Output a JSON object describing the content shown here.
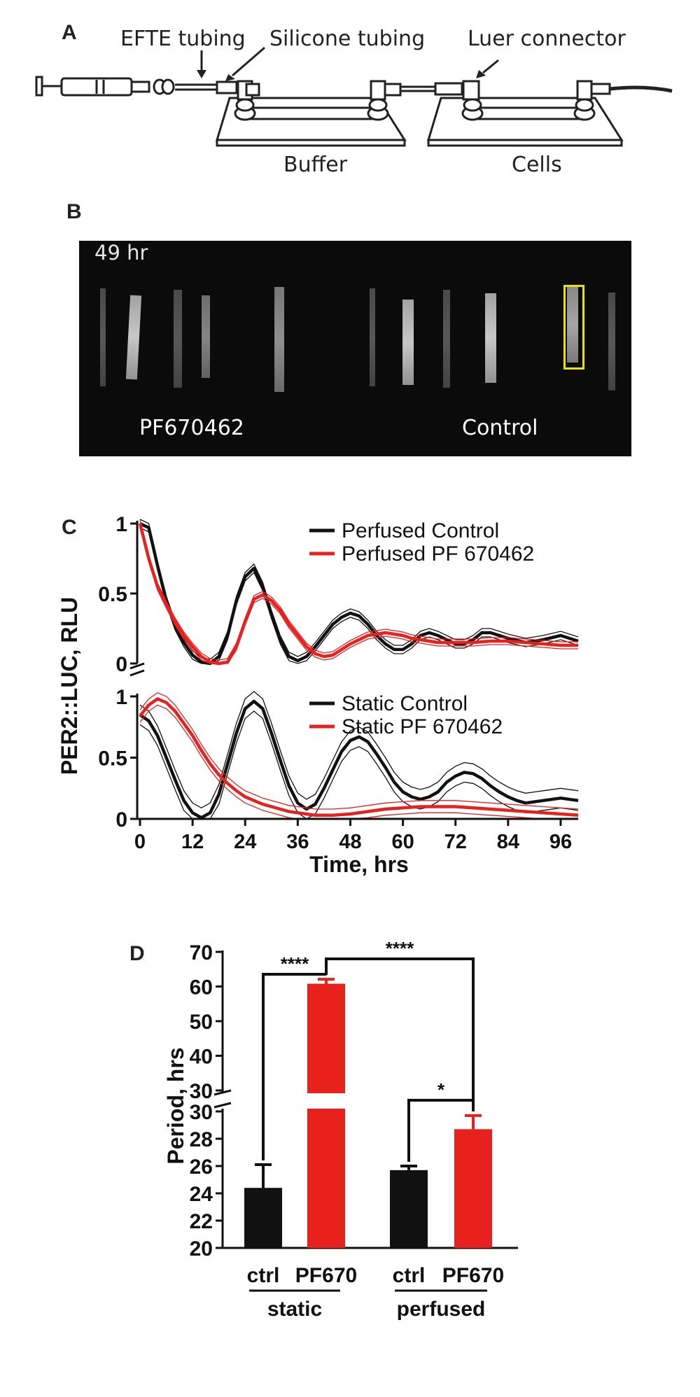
{
  "panel_a": {
    "letter": "A",
    "labels": {
      "efte_tubing": "EFTE tubing",
      "silicone_tubing": "Silicone tubing",
      "luer_connector": "Luer connector",
      "buffer": "Buffer",
      "cells": "Cells"
    }
  },
  "panel_b": {
    "letter": "B",
    "timestamp": "49 hr",
    "left_condition": "PF670462",
    "right_condition": "Control",
    "roi_color": "#e8e400"
  },
  "panel_c": {
    "letter": "C",
    "ylabel": "PER2::LUC, RLU",
    "xlabel": "Time, hrs",
    "colors": {
      "control": "#111111",
      "pf": "#e8211f"
    }
  },
  "panel_d": {
    "letter": "D",
    "ylabel": "Period, hrs",
    "significance": {
      "static_pair": "****",
      "between_groups": "****",
      "perfused_pair": "*"
    },
    "group_labels": {
      "static": "static",
      "perfused": "perfused"
    },
    "colors": {
      "ctrl": "#111111",
      "pf": "#e8211f"
    }
  },
  "chart_data": [
    {
      "type": "line",
      "panel": "C-top",
      "x_range": [
        0,
        100
      ],
      "x_ticks": [
        0,
        12,
        24,
        36,
        48,
        60,
        72,
        84,
        96
      ],
      "ylim": [
        0,
        1
      ],
      "y_ticks": [
        0,
        0.5,
        1
      ],
      "y_tick_labels": [
        "0",
        "0.5",
        "1"
      ],
      "legend_position": "top-right",
      "series": [
        {
          "name": "Perfused Control",
          "color": "#111111",
          "x": [
            0,
            2,
            4,
            6,
            8,
            10,
            12,
            14,
            16,
            18,
            20,
            22,
            24,
            26,
            28,
            30,
            32,
            34,
            36,
            38,
            40,
            42,
            44,
            46,
            48,
            50,
            52,
            54,
            56,
            58,
            60,
            62,
            64,
            66,
            68,
            70,
            72,
            74,
            76,
            78,
            80,
            84,
            88,
            92,
            96,
            100
          ],
          "y": [
            1.0,
            0.97,
            0.7,
            0.45,
            0.27,
            0.15,
            0.06,
            0.01,
            0.0,
            0.05,
            0.2,
            0.45,
            0.62,
            0.68,
            0.55,
            0.35,
            0.17,
            0.05,
            0.02,
            0.05,
            0.12,
            0.2,
            0.28,
            0.33,
            0.36,
            0.34,
            0.28,
            0.2,
            0.14,
            0.1,
            0.1,
            0.14,
            0.2,
            0.22,
            0.2,
            0.17,
            0.14,
            0.14,
            0.17,
            0.22,
            0.22,
            0.18,
            0.15,
            0.17,
            0.2,
            0.16
          ],
          "band": 0.03
        },
        {
          "name": "Perfused PF 670462",
          "color": "#e8211f",
          "x": [
            0,
            2,
            4,
            6,
            8,
            10,
            12,
            14,
            16,
            18,
            20,
            22,
            24,
            26,
            28,
            30,
            32,
            34,
            36,
            38,
            40,
            42,
            44,
            46,
            48,
            50,
            52,
            54,
            56,
            58,
            60,
            62,
            64,
            66,
            68,
            70,
            72,
            76,
            80,
            84,
            88,
            92,
            96,
            100
          ],
          "y": [
            1.0,
            0.75,
            0.55,
            0.42,
            0.3,
            0.2,
            0.12,
            0.05,
            0.01,
            0.0,
            0.01,
            0.12,
            0.3,
            0.46,
            0.49,
            0.45,
            0.38,
            0.28,
            0.2,
            0.12,
            0.07,
            0.05,
            0.06,
            0.1,
            0.14,
            0.17,
            0.2,
            0.21,
            0.22,
            0.21,
            0.2,
            0.18,
            0.17,
            0.16,
            0.15,
            0.15,
            0.15,
            0.15,
            0.16,
            0.16,
            0.15,
            0.14,
            0.13,
            0.13
          ],
          "band": 0.025
        }
      ]
    },
    {
      "type": "line",
      "panel": "C-bottom",
      "x_range": [
        0,
        100
      ],
      "x_ticks": [
        0,
        12,
        24,
        36,
        48,
        60,
        72,
        84,
        96
      ],
      "x_tick_labels": [
        "0",
        "12",
        "24",
        "36",
        "48",
        "60",
        "72",
        "84",
        "96"
      ],
      "ylim": [
        0,
        1
      ],
      "y_ticks": [
        0,
        0.5,
        1
      ],
      "y_tick_labels": [
        "0",
        "0.5",
        "1"
      ],
      "legend_position": "top-right",
      "series": [
        {
          "name": "Static Control",
          "color": "#111111",
          "x": [
            0,
            2,
            4,
            6,
            8,
            10,
            12,
            14,
            16,
            18,
            20,
            22,
            24,
            26,
            28,
            30,
            32,
            34,
            36,
            38,
            40,
            42,
            44,
            46,
            48,
            50,
            52,
            54,
            56,
            58,
            60,
            62,
            64,
            66,
            68,
            70,
            72,
            74,
            76,
            78,
            80,
            82,
            84,
            86,
            88,
            92,
            96,
            100
          ],
          "y": [
            0.85,
            0.8,
            0.68,
            0.5,
            0.32,
            0.15,
            0.05,
            0.01,
            0.05,
            0.2,
            0.45,
            0.7,
            0.9,
            0.96,
            0.9,
            0.7,
            0.48,
            0.27,
            0.13,
            0.08,
            0.12,
            0.25,
            0.4,
            0.55,
            0.64,
            0.67,
            0.63,
            0.53,
            0.42,
            0.3,
            0.22,
            0.18,
            0.16,
            0.18,
            0.22,
            0.3,
            0.35,
            0.38,
            0.37,
            0.33,
            0.27,
            0.22,
            0.18,
            0.15,
            0.13,
            0.15,
            0.17,
            0.15
          ],
          "band": 0.08
        },
        {
          "name": "Static PF 670462",
          "color": "#e8211f",
          "x": [
            0,
            2,
            4,
            6,
            8,
            10,
            12,
            14,
            16,
            18,
            20,
            22,
            24,
            26,
            28,
            30,
            32,
            34,
            36,
            38,
            40,
            44,
            48,
            52,
            56,
            60,
            64,
            68,
            72,
            76,
            80,
            84,
            88,
            92,
            96,
            100
          ],
          "y": [
            0.84,
            0.93,
            0.98,
            0.95,
            0.88,
            0.78,
            0.68,
            0.56,
            0.45,
            0.36,
            0.29,
            0.23,
            0.18,
            0.15,
            0.12,
            0.1,
            0.08,
            0.06,
            0.05,
            0.04,
            0.03,
            0.03,
            0.04,
            0.06,
            0.08,
            0.09,
            0.1,
            0.1,
            0.1,
            0.09,
            0.08,
            0.07,
            0.06,
            0.05,
            0.04,
            0.03
          ],
          "band": 0.05
        }
      ]
    },
    {
      "type": "bar",
      "panel": "D",
      "categories": [
        "ctrl",
        "PF670",
        "ctrl",
        "PF670"
      ],
      "groups": [
        "static",
        "static",
        "perfused",
        "perfused"
      ],
      "values": [
        24.4,
        60.8,
        25.7,
        28.7
      ],
      "errors": [
        1.7,
        1.3,
        0.3,
        1.0
      ],
      "colors": [
        "#111111",
        "#e8211f",
        "#111111",
        "#e8211f"
      ],
      "ylabel": "Period, hrs",
      "axis_break": true,
      "lower_segment": {
        "ylim": [
          20,
          30
        ],
        "y_ticks": [
          20,
          22,
          24,
          26,
          28,
          30
        ]
      },
      "upper_segment": {
        "ylim": [
          30,
          70
        ],
        "y_ticks": [
          30,
          40,
          50,
          60,
          70
        ]
      },
      "significance": [
        {
          "pair": [
            0,
            1
          ],
          "label": "****"
        },
        {
          "pair": [
            1,
            3
          ],
          "label": "****"
        },
        {
          "pair": [
            2,
            3
          ],
          "label": "*"
        }
      ]
    }
  ]
}
